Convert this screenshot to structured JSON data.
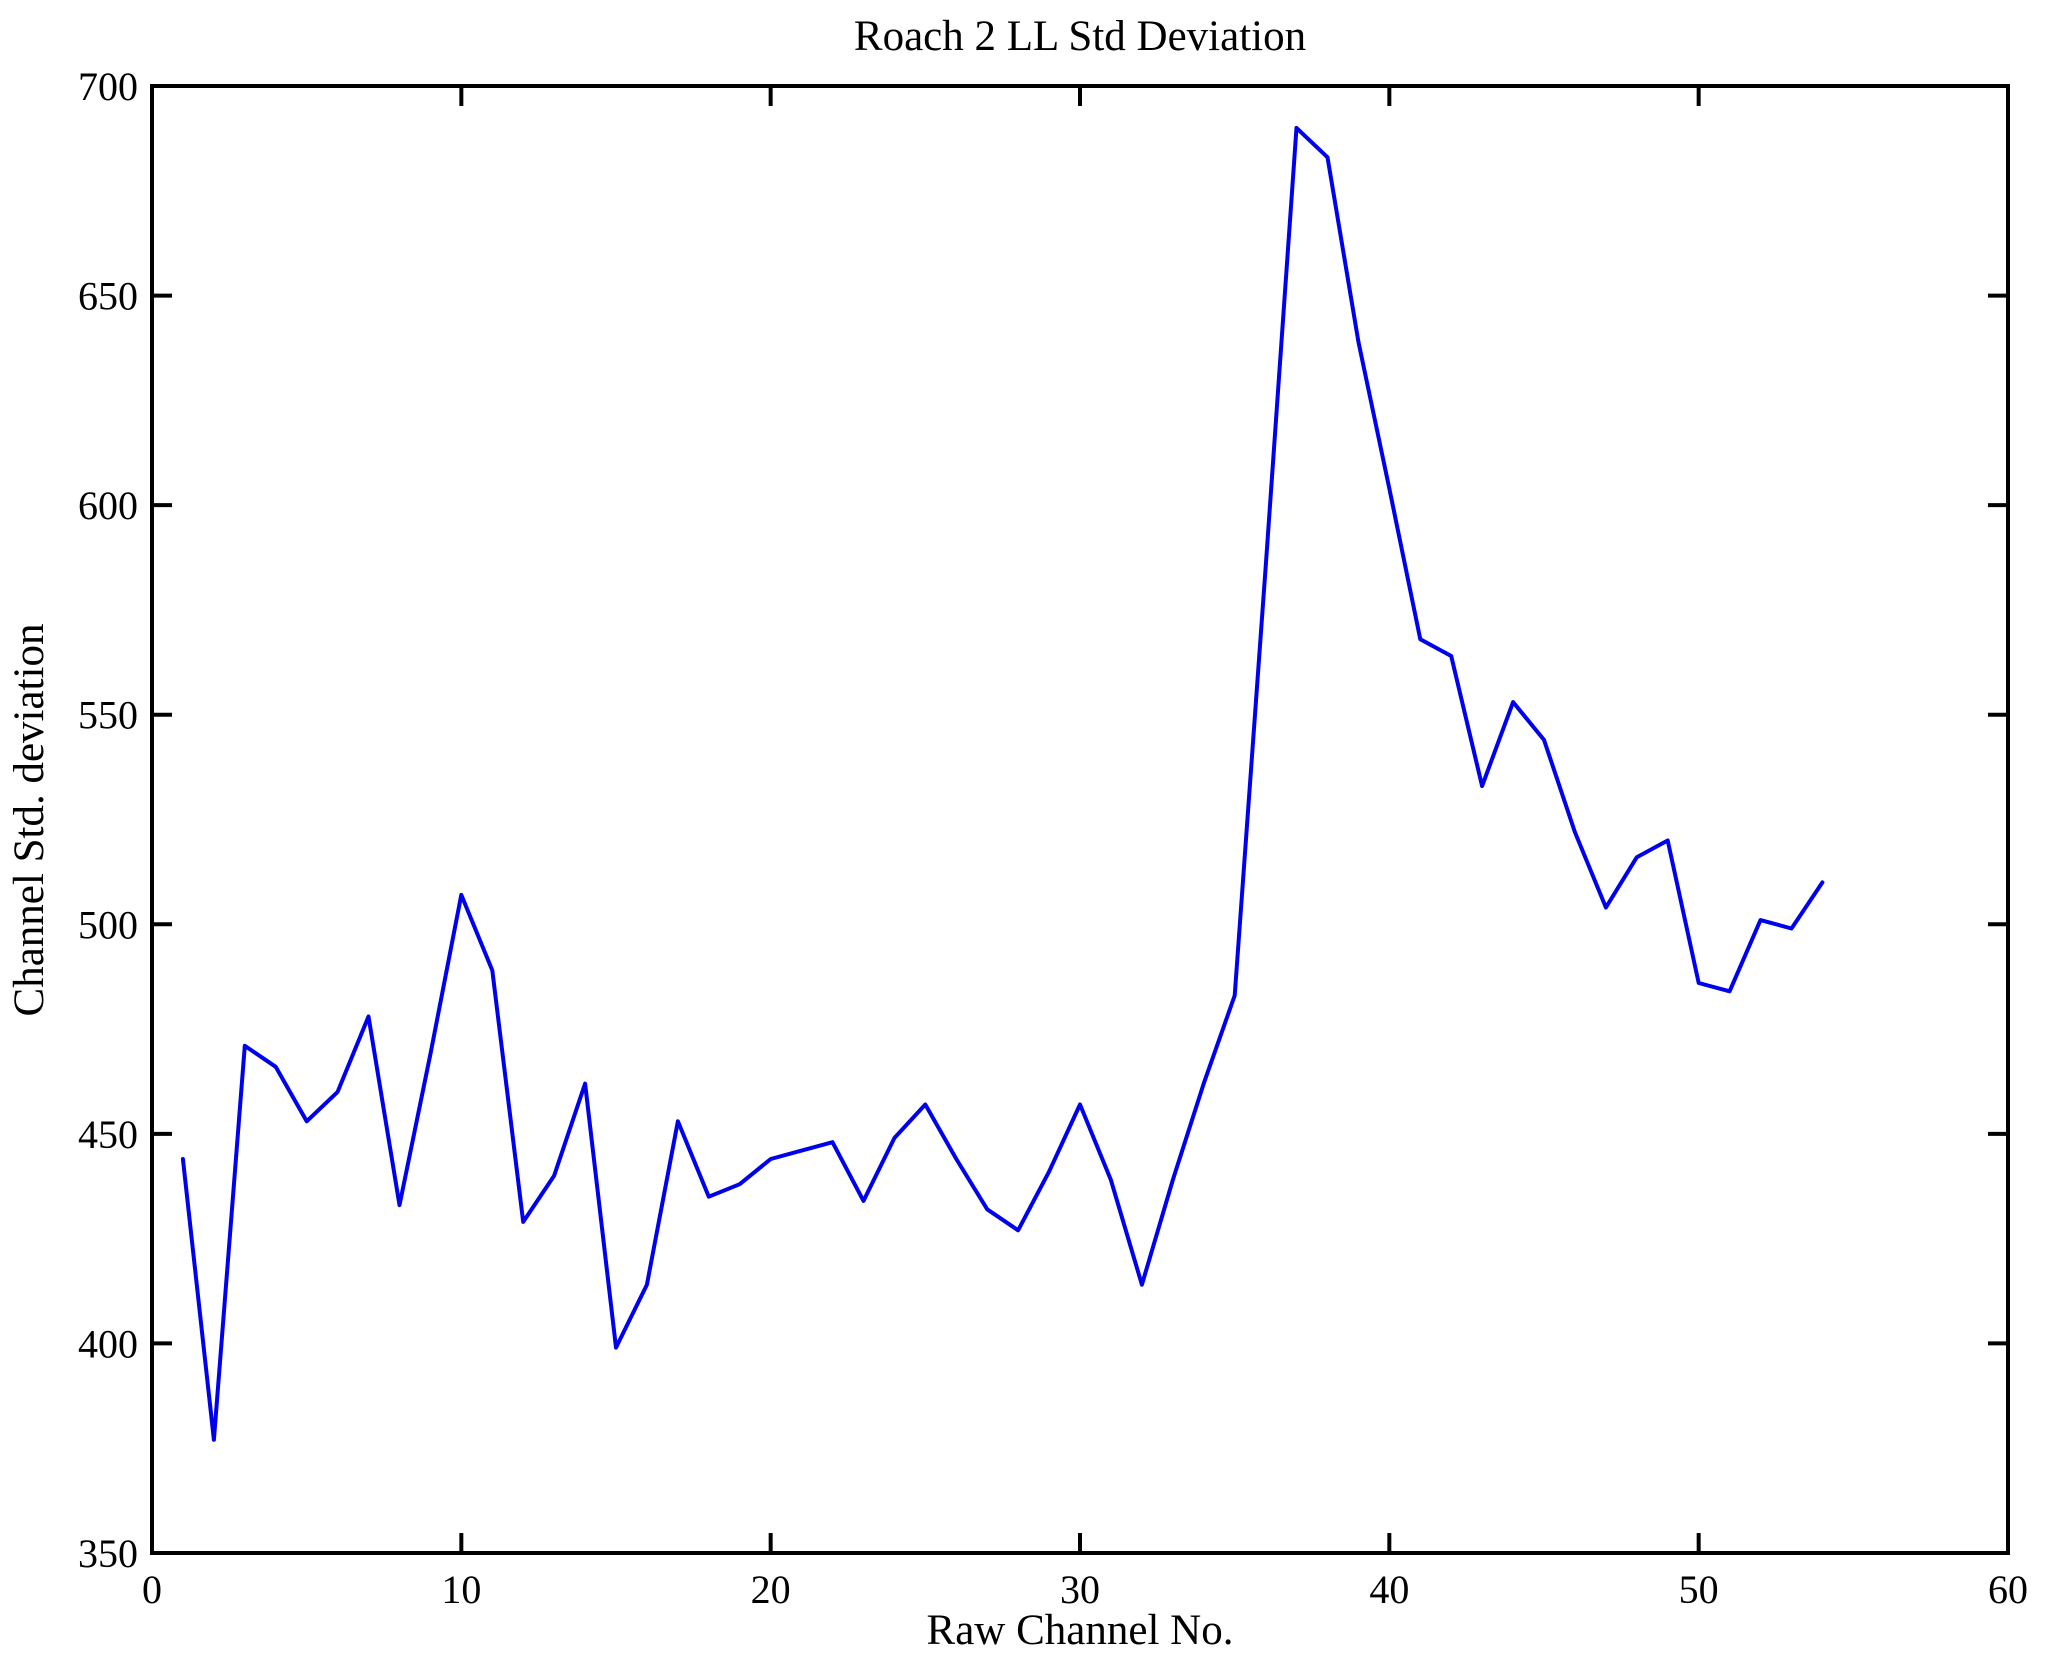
{
  "figure": {
    "background": "#ffffff",
    "axis_color": "#000000"
  },
  "chart_data": {
    "type": "line",
    "title": "Roach 2 LL Std Deviation",
    "xlabel": "Raw Channel No.",
    "ylabel": "Channel Std. deviation",
    "xlim": [
      0,
      60
    ],
    "ylim": [
      350,
      700
    ],
    "x_ticks": [
      0,
      10,
      20,
      30,
      40,
      50,
      60
    ],
    "y_ticks": [
      350,
      400,
      450,
      500,
      550,
      600,
      650,
      700
    ],
    "grid": false,
    "legend": null,
    "line_color": "#0000f0",
    "series_name": "Channel Std. deviation",
    "x": [
      1,
      2,
      3,
      4,
      5,
      6,
      7,
      8,
      9,
      10,
      11,
      12,
      13,
      14,
      15,
      16,
      17,
      18,
      19,
      20,
      21,
      22,
      23,
      24,
      25,
      26,
      27,
      28,
      29,
      30,
      31,
      32,
      33,
      34,
      35,
      36,
      37,
      38,
      39,
      40,
      41,
      42,
      43,
      44,
      45,
      46,
      47,
      48,
      49,
      50,
      51,
      52,
      53,
      54
    ],
    "values": [
      444,
      377,
      471,
      466,
      453,
      460,
      478,
      433,
      469,
      507,
      489,
      429,
      440,
      462,
      399,
      414,
      453,
      435,
      438,
      444,
      446,
      448,
      434,
      449,
      457,
      444,
      432,
      427,
      441,
      457,
      439,
      414,
      439,
      462,
      483,
      585,
      690,
      683,
      639,
      604,
      568,
      564,
      533,
      553,
      544,
      522,
      504,
      516,
      520,
      486,
      484,
      501,
      499,
      510
    ]
  }
}
